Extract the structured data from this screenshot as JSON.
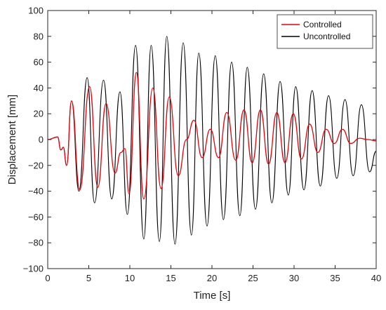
{
  "chart_data": {
    "type": "line",
    "title": "",
    "xlabel": "Time [s]",
    "ylabel": "Displacement [mm]",
    "xlim": [
      0,
      40
    ],
    "ylim": [
      -100,
      100
    ],
    "xticks": [
      0,
      5,
      10,
      15,
      20,
      25,
      30,
      35,
      40
    ],
    "yticks": [
      -100,
      -80,
      -60,
      -40,
      -20,
      0,
      20,
      40,
      60,
      80,
      100
    ],
    "grid": false,
    "legend_position": "top-right",
    "series": [
      {
        "name": "Uncontrolled",
        "color": "#000000",
        "x": [
          0,
          1.2,
          1.6,
          1.9,
          2.3,
          2.9,
          3.8,
          4.8,
          5.7,
          6.8,
          7.8,
          8.8,
          9.7,
          10.7,
          11.7,
          12.6,
          13.6,
          14.5,
          15.5,
          16.5,
          17.5,
          18.4,
          19.4,
          20.4,
          21.4,
          22.4,
          23.4,
          24.3,
          25.3,
          26.3,
          27.3,
          28.3,
          29.3,
          30.2,
          31.2,
          32.2,
          33.2,
          34.2,
          35.2,
          36.2,
          37.2,
          38.2,
          39.2,
          40.0
        ],
        "y": [
          0,
          2,
          -8,
          -6,
          -20,
          30,
          -40,
          48,
          -49,
          46,
          -46,
          37,
          -58,
          73,
          -77,
          73,
          -79,
          80,
          -81,
          75,
          -74,
          67,
          -67,
          65,
          -62,
          60,
          -59,
          56,
          -54,
          51,
          -49,
          45,
          -43,
          41,
          -39,
          38,
          -36,
          34,
          -30,
          31,
          -28,
          27,
          -25,
          -9
        ]
      },
      {
        "name": "Controlled",
        "color": "#e8000b",
        "x": [
          0,
          1.2,
          1.6,
          1.9,
          2.3,
          2.9,
          3.9,
          5.1,
          6.1,
          7.1,
          8.2,
          8.9,
          9.4,
          9.9,
          10.8,
          11.7,
          12.8,
          13.8,
          14.8,
          15.9,
          16.9,
          17.8,
          18.8,
          19.8,
          20.8,
          21.8,
          22.9,
          23.9,
          24.9,
          25.9,
          26.9,
          27.9,
          28.9,
          29.9,
          30.9,
          31.9,
          32.9,
          33.9,
          34.9,
          35.9,
          36.9,
          38.0,
          39.0,
          40.0
        ],
        "y": [
          0,
          2,
          -8,
          -6,
          -20,
          30,
          -39,
          41,
          -37,
          28,
          -26,
          -10,
          -7,
          -42,
          52,
          -46,
          40,
          -38,
          33,
          -28,
          0,
          15,
          -14,
          8,
          -14,
          21,
          -16,
          23,
          -18,
          23,
          -19,
          21,
          -18,
          20,
          -15,
          12,
          -10,
          8,
          -3,
          8,
          -3,
          1,
          0,
          -1
        ]
      }
    ]
  }
}
